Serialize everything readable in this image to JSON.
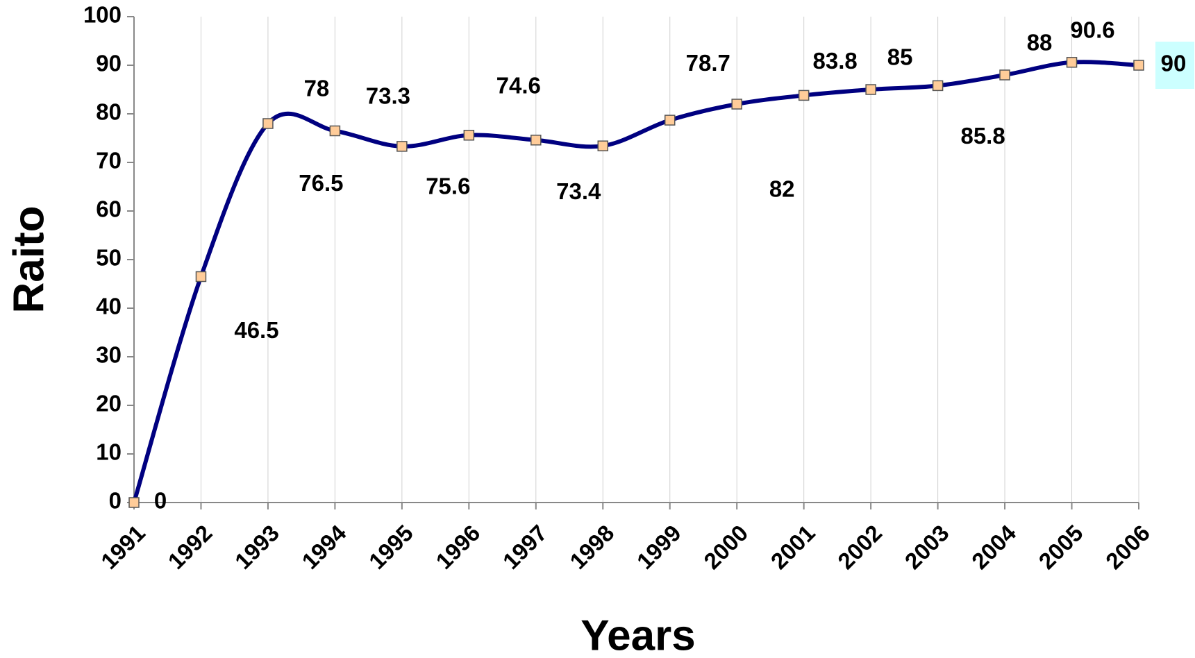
{
  "chart_data": {
    "type": "line",
    "x_label": "Years",
    "y_label": "Raito",
    "categories": [
      "1991",
      "1992",
      "1993",
      "1994",
      "1995",
      "1996",
      "1997",
      "1998",
      "1999",
      "2000",
      "2001",
      "2002",
      "2003",
      "2004",
      "2005",
      "2006"
    ],
    "series": [
      {
        "name": "Raito",
        "color": "#000080",
        "marker_color": "#ffcc99",
        "values": [
          0,
          46.5,
          78,
          76.5,
          73.3,
          75.6,
          74.6,
          73.4,
          78.7,
          82,
          83.8,
          85,
          85.8,
          88,
          90.6,
          90
        ]
      }
    ],
    "ylim": [
      0,
      100
    ],
    "yticks": [
      0,
      10,
      20,
      30,
      40,
      50,
      60,
      70,
      80,
      90,
      100
    ],
    "grid": true
  }
}
